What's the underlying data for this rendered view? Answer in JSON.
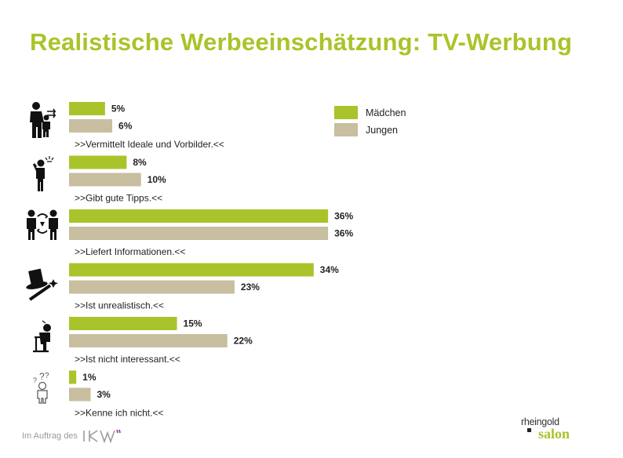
{
  "title": "Realistische Werbeeinschätzung: TV-Werbung",
  "colors": {
    "maedchen": "#a8c42a",
    "jungen": "#c8bea0",
    "title": "#a8c42a"
  },
  "chart_data": {
    "type": "bar",
    "orientation": "horizontal",
    "title": "Realistische Werbeeinschätzung: TV-Werbung",
    "categories": [
      ">>Vermittelt Ideale und Vorbilder.<<",
      ">>Gibt gute Tipps.<<",
      ">>Liefert Informationen.<<",
      ">>Ist unrealistisch.<<",
      ">>Ist nicht interessant.<<",
      ">>Kenne ich nicht.<<"
    ],
    "series": [
      {
        "name": "Mädchen",
        "values": [
          5,
          8,
          36,
          34,
          15,
          1
        ]
      },
      {
        "name": "Jungen",
        "values": [
          6,
          10,
          36,
          23,
          22,
          3
        ]
      }
    ],
    "value_labels": {
      "Mädchen": [
        "5%",
        "8%",
        "36%",
        "34%",
        "15%",
        "1%"
      ],
      "Jungen": [
        "6%",
        "10%",
        "36%",
        "23%",
        "22%",
        "3%"
      ]
    },
    "legend": {
      "position": "top-right",
      "entries": [
        "Mädchen",
        "Jungen"
      ]
    },
    "grid": false
  },
  "icons": [
    "parent-child-icon",
    "idea-person-icon",
    "exchange-people-icon",
    "magic-hat-icon",
    "bored-person-icon",
    "confused-person-icon"
  ],
  "footer": {
    "text": "Im Auftrag des",
    "logo": "IKW"
  },
  "brand": {
    "top": "rheingold",
    "bottom": "salon"
  }
}
